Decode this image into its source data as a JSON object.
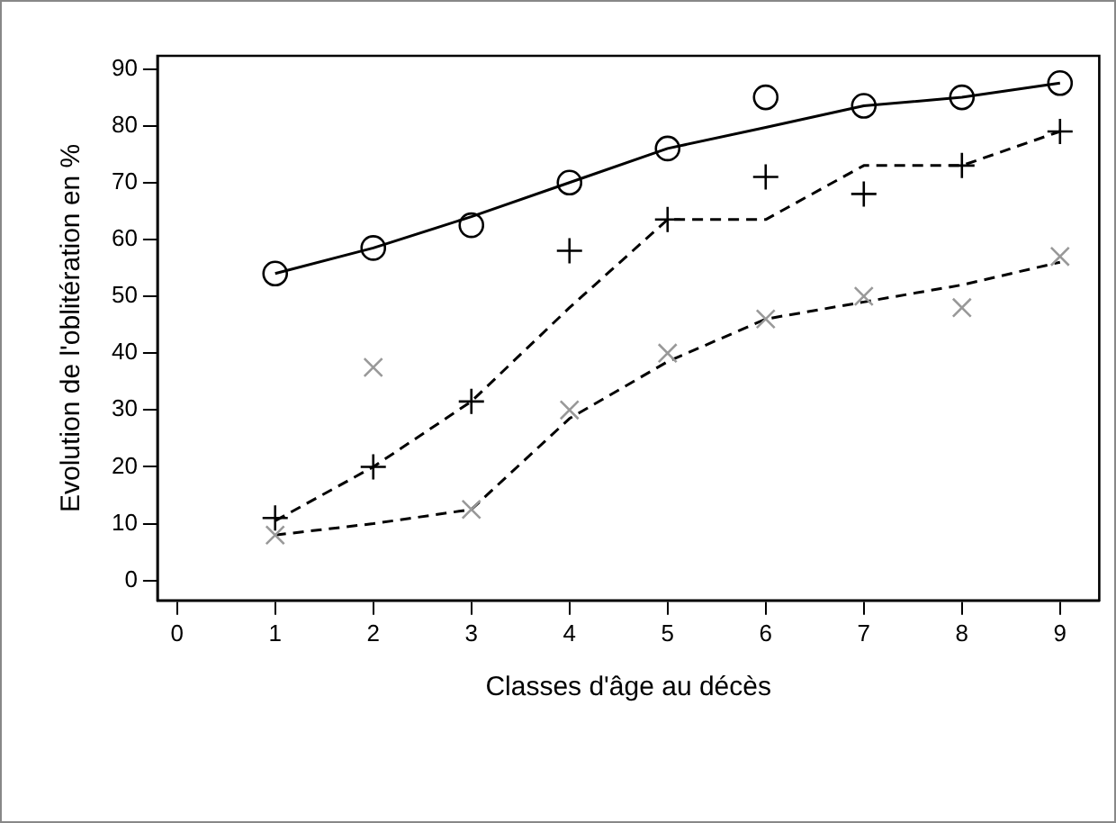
{
  "chart_data": {
    "type": "scatter",
    "xlabel": "Classes d'âge au décès",
    "ylabel": "Evolution de l'oblitération en %",
    "xlim": [
      -0.2,
      9.4
    ],
    "xticks": [
      0,
      1,
      2,
      3,
      4,
      5,
      6,
      7,
      8,
      9
    ],
    "ylim": [
      -3.5,
      92.3
    ],
    "yticks": [
      0,
      10,
      20,
      30,
      40,
      50,
      60,
      70,
      80,
      90
    ],
    "grid": false,
    "legend": false,
    "series": [
      {
        "type": "scatter",
        "marker": "circle",
        "color": "#000000",
        "x": [
          1,
          2,
          3,
          4,
          5,
          6,
          7,
          8,
          9
        ],
        "values": [
          54,
          58.5,
          62.5,
          70,
          76,
          85,
          83.5,
          85,
          87.5
        ]
      },
      {
        "type": "scatter",
        "marker": "cross",
        "color": "#000000",
        "x": [
          1,
          2,
          3,
          4,
          5,
          6,
          7,
          8,
          9
        ],
        "values": [
          11,
          20,
          31.5,
          58,
          63.5,
          71,
          68,
          73,
          79
        ]
      },
      {
        "type": "scatter",
        "marker": "x",
        "color": "#999999",
        "x": [
          1,
          2,
          3,
          4,
          5,
          6,
          7,
          8,
          9
        ],
        "values": [
          8,
          37.5,
          12.5,
          30,
          40,
          46,
          50,
          48,
          57
        ]
      },
      {
        "type": "line",
        "marker": "none",
        "line_style": "solid",
        "color": "#000000",
        "x": [
          1,
          2,
          3,
          4,
          5,
          6,
          7,
          8,
          9
        ],
        "values": [
          54,
          58.5,
          64,
          70,
          76,
          79.7,
          83.5,
          85,
          87.5
        ]
      },
      {
        "type": "line",
        "marker": "none",
        "line_style": "dashed",
        "color": "#000000",
        "x": [
          1,
          2,
          3,
          4,
          5,
          6,
          7,
          8,
          9
        ],
        "values": [
          10.5,
          20,
          31.5,
          48,
          63.5,
          63.5,
          73,
          73,
          79
        ]
      },
      {
        "type": "line",
        "marker": "none",
        "line_style": "dashed",
        "color": "#000000",
        "x": [
          1,
          2,
          3,
          4,
          5,
          6,
          7,
          8,
          9
        ],
        "values": [
          8,
          10,
          12.5,
          28.5,
          38.5,
          46,
          49,
          52,
          56
        ]
      }
    ]
  }
}
